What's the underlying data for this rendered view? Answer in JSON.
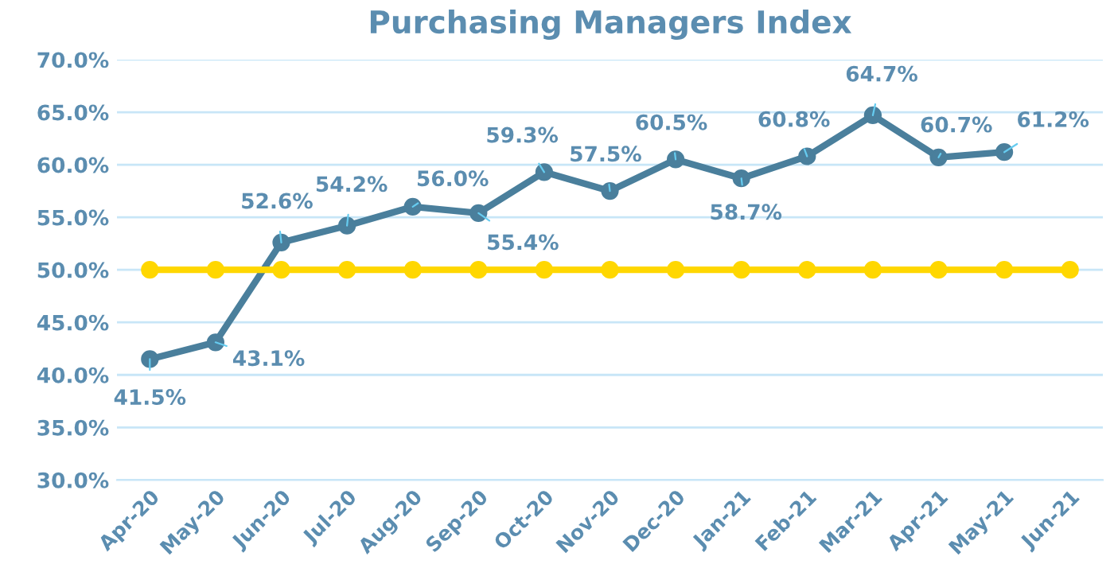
{
  "chart_data": {
    "type": "line",
    "title": "Purchasing Managers Index",
    "categories": [
      "Apr-20",
      "May-20",
      "Jun-20",
      "Jul-20",
      "Aug-20",
      "Sep-20",
      "Oct-20",
      "Nov-20",
      "Dec-20",
      "Jan-21",
      "Feb-21",
      "Mar-21",
      "Apr-21",
      "May-21",
      "Jun-21"
    ],
    "series": [
      {
        "color": "#4a7f9c",
        "values": [
          41.5,
          43.1,
          52.6,
          54.2,
          56.0,
          55.4,
          59.3,
          57.5,
          60.5,
          58.7,
          60.8,
          64.7,
          60.7,
          61.2,
          null
        ],
        "value_labels": [
          "41.5%",
          "43.1%",
          "52.6%",
          "54.2%",
          "56.0%",
          "55.4%",
          "59.3%",
          "57.5%",
          "60.5%",
          "58.7%",
          "60.8%",
          "64.7%",
          "60.7%",
          "61.2%",
          null
        ]
      },
      {
        "color": "#ffd700",
        "values": [
          50,
          50,
          50,
          50,
          50,
          50,
          50,
          50,
          50,
          50,
          50,
          50,
          50,
          50,
          50
        ]
      }
    ],
    "ylim": [
      30,
      70
    ],
    "yticks": [
      {
        "value": 30,
        "label": "30.0%"
      },
      {
        "value": 35,
        "label": "35.0%"
      },
      {
        "value": 40,
        "label": "40.0%"
      },
      {
        "value": 45,
        "label": "45.0%"
      },
      {
        "value": 50,
        "label": "50.0%"
      },
      {
        "value": 55,
        "label": "55.0%"
      },
      {
        "value": 60,
        "label": "60.0%"
      },
      {
        "value": 65,
        "label": "65.0%"
      },
      {
        "value": 70,
        "label": "70.0%"
      }
    ],
    "grid": "y",
    "legend": false,
    "marker": "circle",
    "line_style": "solid"
  }
}
